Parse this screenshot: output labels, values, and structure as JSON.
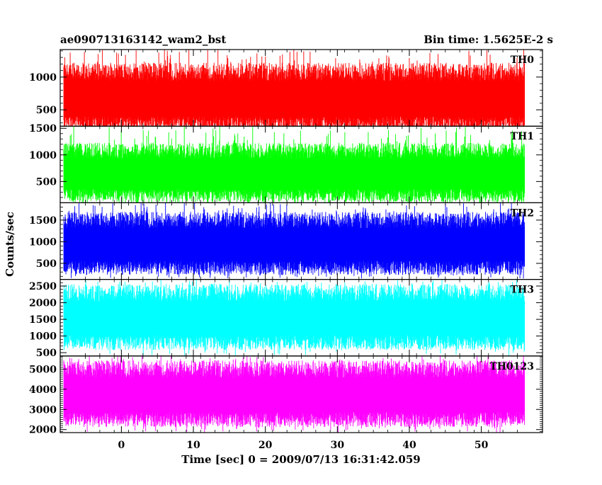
{
  "chart_data": {
    "type": "line",
    "title_left": "ae090713163142_wam2_bst",
    "title_right": "Bin time: 1.5625E-2 s",
    "xlabel": "Time [sec] 0 = 2009/07/13 16:31:42.059",
    "ylabel": "Counts/sec",
    "xlim": [
      -8.5,
      58.5
    ],
    "data_xrange": [
      -8,
      56
    ],
    "x_ticks": [
      0,
      10,
      20,
      30,
      40,
      50
    ],
    "x_tick_labels": [
      "0",
      "10",
      "20",
      "30",
      "40",
      "50"
    ],
    "grid": false,
    "panels": [
      {
        "name": "TH0",
        "color": "#ff0000",
        "ylim": [
          250,
          1420
        ],
        "y_ticks": [
          500,
          1000
        ],
        "y_tick_labels": [
          "500",
          "1000"
        ],
        "typical_low": 280,
        "typical_high": 1080,
        "peak_low": 150,
        "peak_high": 1420
      },
      {
        "name": "TH1",
        "color": "#00ff00",
        "ylim": [
          100,
          1540
        ],
        "y_ticks": [
          500,
          1000,
          1500
        ],
        "y_tick_labels": [
          "500",
          "1000",
          "1500"
        ],
        "typical_low": 230,
        "typical_high": 1080,
        "peak_low": 100,
        "peak_high": 1540
      },
      {
        "name": "TH2",
        "color": "#0000ff",
        "ylim": [
          130,
          1900
        ],
        "y_ticks": [
          500,
          1000,
          1500
        ],
        "y_tick_labels": [
          "500",
          "1000",
          "1500"
        ],
        "typical_low": 400,
        "typical_high": 1500,
        "peak_low": 150,
        "peak_high": 1900
      },
      {
        "name": "TH3",
        "color": "#00ffff",
        "ylim": [
          400,
          2700
        ],
        "y_ticks": [
          500,
          1000,
          1500,
          2000,
          2500
        ],
        "y_tick_labels": [
          "500",
          "1000",
          "1500",
          "2000",
          "2500"
        ],
        "typical_low": 800,
        "typical_high": 2300,
        "peak_low": 400,
        "peak_high": 2700
      },
      {
        "name": "TH0123",
        "color": "#ff00ff",
        "ylim": [
          1850,
          5650
        ],
        "y_ticks": [
          2000,
          3000,
          4000,
          5000
        ],
        "y_tick_labels": [
          "2000",
          "3000",
          "4000",
          "5000"
        ],
        "typical_low": 2500,
        "typical_high": 5000,
        "peak_low": 1850,
        "peak_high": 5650
      }
    ]
  }
}
